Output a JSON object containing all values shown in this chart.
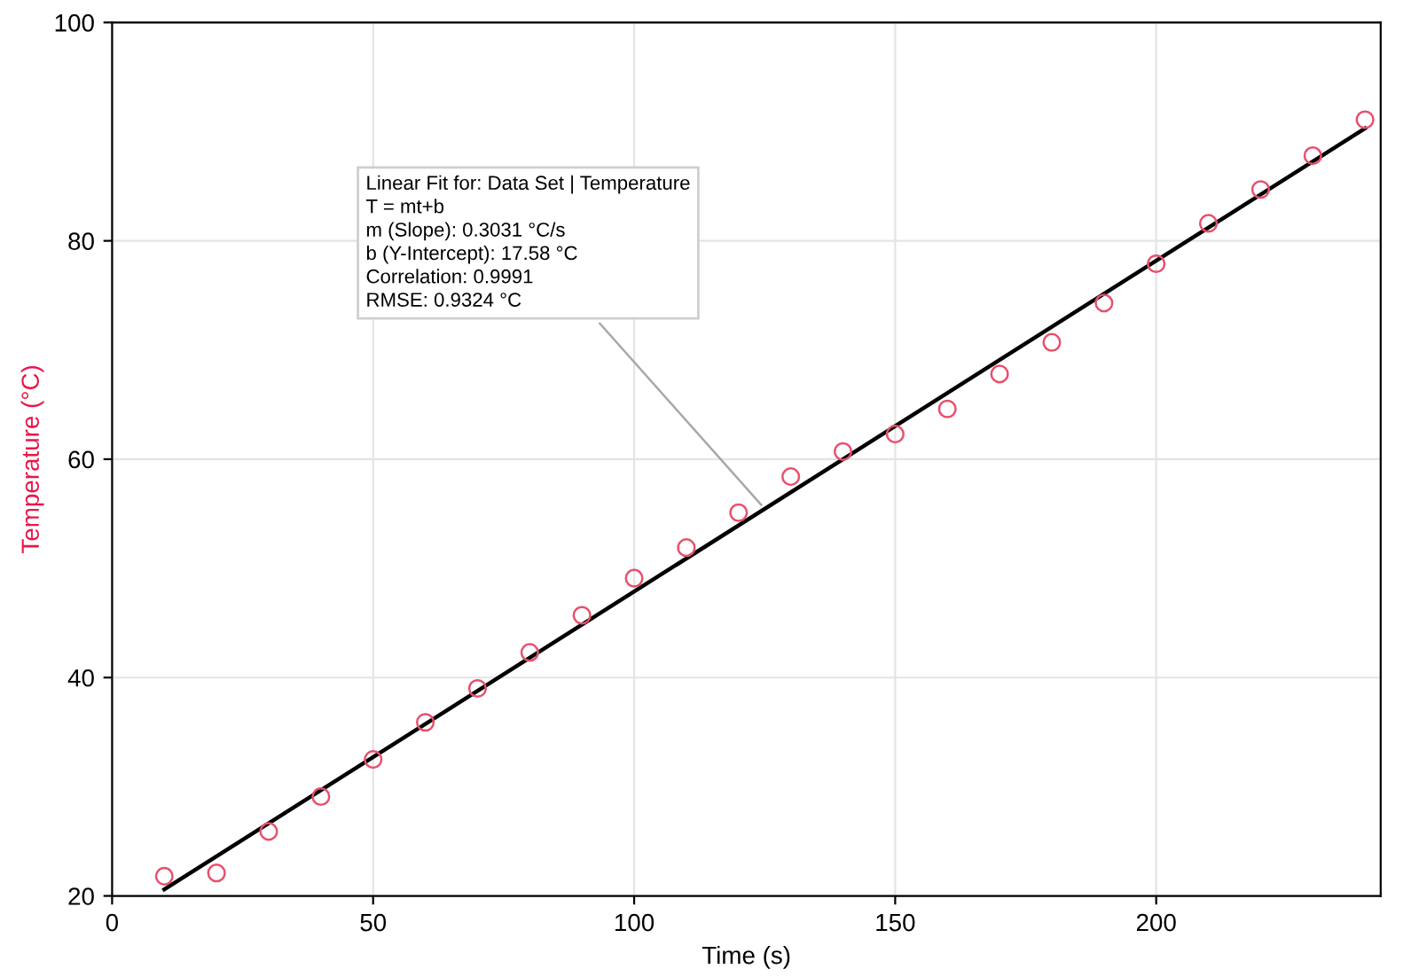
{
  "chart_data": {
    "type": "scatter",
    "xlabel": "Time (s)",
    "ylabel": "Temperature (°C)",
    "xlim": [
      0,
      243
    ],
    "ylim": [
      20,
      100
    ],
    "xticks": [
      0,
      50,
      100,
      150,
      200
    ],
    "yticks": [
      20,
      40,
      60,
      80,
      100
    ],
    "grid": true,
    "x": [
      10,
      20,
      30,
      40,
      50,
      60,
      70,
      80,
      90,
      100,
      110,
      120,
      130,
      140,
      150,
      160,
      170,
      180,
      190,
      200,
      210,
      220,
      230,
      240
    ],
    "series": [
      {
        "color": "#e8506e",
        "marker": "circle",
        "values": [
          21.8,
          22.1,
          25.9,
          29.1,
          32.5,
          35.9,
          39.0,
          42.3,
          45.7,
          49.1,
          51.9,
          55.1,
          58.4,
          60.7,
          62.3,
          64.6,
          67.8,
          70.7,
          74.3,
          77.9,
          81.6,
          84.7,
          87.8,
          91.1
        ]
      },
      {
        "type": "line",
        "color": "#000000",
        "x": [
          10,
          240
        ],
        "values": [
          20.6,
          90.3
        ],
        "marker": "none",
        "line_style": "solid"
      }
    ],
    "annotations": [
      {
        "text": "Linear Fit for: Data Set | Temperature\nT = mt+b\nm (Slope): 0.3031 °C/s\nb (Y-Intercept): 17.58 °C\nCorrelation: 0.9991\nRMSE: 0.9324 °C",
        "x": 125,
        "y": 55.47
      }
    ]
  }
}
